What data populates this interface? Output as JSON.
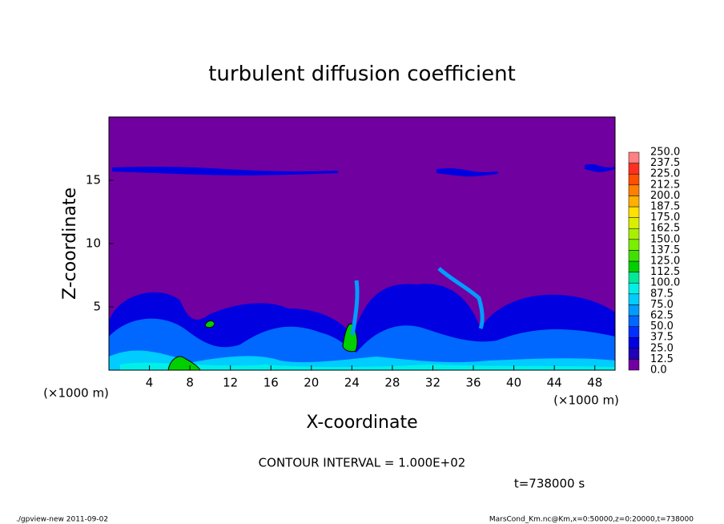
{
  "chart_data": {
    "type": "contour",
    "title": "turbulent diffusion coefficient",
    "x_label": "X-coordinate",
    "y_label": "Z-coordinate",
    "x_unit_label": "(×1000 m)",
    "y_unit_label": "(×1000 m)",
    "xlim": [
      0,
      50
    ],
    "ylim": [
      0,
      20
    ],
    "xticks": [
      4,
      8,
      12,
      16,
      20,
      24,
      28,
      32,
      36,
      40,
      44,
      48
    ],
    "yticks": [
      5,
      10,
      15
    ],
    "colorbar_levels": [
      {
        "value": 0,
        "label": "0.0"
      },
      12.5,
      {
        "value": 25,
        "label": "25.0"
      },
      37.5,
      {
        "value": 50,
        "label": "50.0"
      },
      62.5,
      {
        "value": 75,
        "label": "75.0"
      },
      87.5,
      {
        "value": 100,
        "label": "100.0"
      },
      112.5,
      {
        "value": 125,
        "label": "125.0"
      },
      137.5,
      {
        "value": 150,
        "label": "150.0"
      },
      162.5,
      {
        "value": 175,
        "label": "175.0"
      },
      187.5,
      {
        "value": 200,
        "label": "200.0"
      },
      212.5,
      {
        "value": 225,
        "label": "225.0"
      },
      237.5,
      {
        "value": 250,
        "label": "250.0"
      }
    ],
    "colorbar_colors": [
      "#7000a0",
      "#2000b8",
      "#0000e0",
      "#0030ff",
      "#0068ff",
      "#009cff",
      "#00ccff",
      "#00f0e8",
      "#00e898",
      "#00d000",
      "#40e000",
      "#78f000",
      "#a8f000",
      "#d8f000",
      "#ffe000",
      "#ffb000",
      "#ff8000",
      "#ff5000",
      "#ff3020",
      "#ff8080"
    ],
    "contour_note": "CONTOUR INTERVAL = 1.000E+02",
    "time_label": "t=738000 s",
    "footer_left": "./gpview-new  2011-09-02",
    "footer_right": "MarsCond_Km.nc@Km,x=0:50000,z=0:20000,t=738000"
  }
}
